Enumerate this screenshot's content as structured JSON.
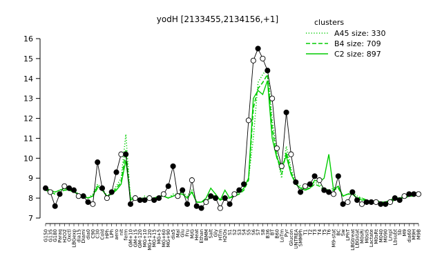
{
  "chart_data": {
    "type": "line",
    "title": "yodH [2133455,2134156,+1]",
    "xlabel": "",
    "ylabel": "",
    "ylim": [
      7,
      16
    ],
    "yticks": [
      7,
      8,
      9,
      10,
      11,
      12,
      13,
      14,
      15,
      16
    ],
    "grid": false,
    "legend": {
      "title": "clusters",
      "placement": "top-right",
      "entries": [
        {
          "label": "A45 size: 330",
          "style": "dotted"
        },
        {
          "label": "B4 size: 709",
          "style": "dashed"
        },
        {
          "label": "C2 size: 897",
          "style": "solid"
        }
      ]
    },
    "color": "#00cc00",
    "x_labels": [
      "G150",
      "G135",
      "G180",
      "Paraq",
      "H2O2",
      "Oxctl",
      "LBGexp",
      "dia15",
      "Diami",
      "dia0",
      "C90",
      "C30",
      "Cold",
      "HPh",
      "LPh",
      "aero",
      "nit",
      "ferm",
      "GM+10",
      "GM+15",
      "GM-120",
      "MG+10",
      "MG+120",
      "MG+15",
      "MG+5",
      "MG+60",
      "MG+90",
      "dia5",
      "Mal",
      "Glu",
      "Fru",
      "M/G",
      "Heat",
      "Ethan",
      "BMM",
      "Salt",
      "Gly",
      "HTm",
      "H2Os",
      "S1",
      "S2",
      "S3",
      "S4",
      "S5",
      "S6",
      "S7",
      "S8",
      "B36",
      "BT",
      "B60",
      "LoTm",
      "Pyr",
      "Glucon",
      "UNTREA",
      "SMMPh",
      "T1",
      "T2",
      "T3",
      "T4",
      "T5",
      "T6",
      "M9-stat",
      "BC",
      "Sw",
      "LPhT",
      "LBGtreat",
      "LBGstat",
      "M0sRi",
      "M0sI5",
      "Lactate",
      "M0sRt",
      "M040",
      "M090",
      "Lmpl",
      "Lbsubt",
      "Sb",
      "M9",
      "dia60",
      "M9H",
      "M9B"
    ],
    "series": [
      {
        "name": "A45 size: 330",
        "style": "dotted",
        "values": [
          8.5,
          8.4,
          8.3,
          8.4,
          8.5,
          8.5,
          8.4,
          8.2,
          8.1,
          8.0,
          8.2,
          8.7,
          8.5,
          8.1,
          8.3,
          8.6,
          9.0,
          11.2,
          7.9,
          8.0,
          7.9,
          8.1,
          8.0,
          8.0,
          8.1,
          8.1,
          8.0,
          8.2,
          8.2,
          8.3,
          8.1,
          8.4,
          7.8,
          7.8,
          7.9,
          8.0,
          8.2,
          7.9,
          8.1,
          8.0,
          8.1,
          8.2,
          8.5,
          9.0,
          11.0,
          13.8,
          14.2,
          14.5,
          12.0,
          10.2,
          9.0,
          10.6,
          9.5,
          8.8,
          8.6,
          8.4,
          8.6,
          8.8,
          8.7,
          8.5,
          8.4,
          8.5,
          8.6,
          8.1,
          8.2,
          8.3,
          8.1,
          8.0,
          7.9,
          7.8,
          7.9,
          7.8,
          7.8,
          7.9,
          8.0,
          8.0,
          8.1,
          8.1,
          8.2,
          8.3
        ]
      },
      {
        "name": "B4 size: 709",
        "style": "dashed",
        "values": [
          8.4,
          8.3,
          8.2,
          8.3,
          8.4,
          8.4,
          8.3,
          8.2,
          8.1,
          8.0,
          8.1,
          8.5,
          8.4,
          8.1,
          8.2,
          8.5,
          8.8,
          10.4,
          7.9,
          8.0,
          7.9,
          8.0,
          8.0,
          8.0,
          8.1,
          8.1,
          8.0,
          8.1,
          8.2,
          8.2,
          8.0,
          8.3,
          7.8,
          7.8,
          7.9,
          8.0,
          8.1,
          7.9,
          8.0,
          8.0,
          8.1,
          8.2,
          8.4,
          8.9,
          12.5,
          13.5,
          13.8,
          14.2,
          11.5,
          10.1,
          9.2,
          10.3,
          9.3,
          8.7,
          8.5,
          8.4,
          8.5,
          8.7,
          8.6,
          8.4,
          8.3,
          8.4,
          8.5,
          8.1,
          8.2,
          8.2,
          8.0,
          8.0,
          7.9,
          7.8,
          7.9,
          7.8,
          7.8,
          7.9,
          8.0,
          8.0,
          8.0,
          8.1,
          8.1,
          8.2
        ]
      },
      {
        "name": "C2 size: 897",
        "style": "solid",
        "values": [
          8.5,
          8.4,
          8.3,
          8.4,
          8.5,
          8.4,
          8.3,
          8.2,
          8.1,
          8.0,
          8.1,
          8.6,
          8.4,
          8.1,
          8.2,
          8.4,
          8.7,
          9.9,
          8.0,
          8.0,
          7.9,
          8.0,
          8.0,
          8.0,
          8.1,
          8.1,
          8.0,
          8.1,
          8.2,
          8.2,
          8.0,
          8.3,
          7.8,
          7.8,
          8.0,
          8.5,
          8.2,
          7.9,
          8.4,
          8.0,
          8.2,
          8.3,
          8.5,
          9.0,
          13.0,
          13.4,
          13.2,
          13.9,
          11.0,
          10.0,
          9.6,
          10.1,
          9.2,
          8.7,
          8.5,
          8.4,
          8.5,
          8.9,
          8.8,
          9.0,
          10.2,
          8.4,
          8.6,
          8.1,
          8.2,
          8.2,
          8.0,
          7.9,
          7.9,
          7.8,
          7.8,
          7.8,
          7.8,
          7.8,
          7.9,
          8.0,
          8.0,
          8.1,
          8.1,
          8.2
        ]
      },
      {
        "name": "",
        "style": "points",
        "values": [
          8.5,
          8.3,
          7.6,
          8.2,
          8.6,
          8.5,
          8.4,
          8.1,
          8.1,
          7.8,
          7.7,
          9.8,
          8.5,
          8.0,
          8.3,
          9.3,
          10.2,
          10.2,
          7.7,
          8.0,
          7.9,
          7.9,
          8.0,
          7.9,
          8.0,
          8.2,
          8.6,
          9.6,
          8.1,
          8.4,
          7.7,
          8.9,
          7.6,
          7.5,
          7.8,
          8.1,
          8.0,
          7.5,
          8.0,
          7.7,
          8.2,
          8.4,
          8.7,
          11.9,
          14.9,
          15.5,
          15.0,
          14.4,
          13.0,
          10.5,
          9.6,
          12.3,
          10.2,
          8.8,
          8.3,
          8.6,
          8.7,
          9.1,
          8.9,
          8.4,
          8.3,
          8.2,
          9.1,
          7.7,
          7.8,
          8.3,
          7.9,
          7.7,
          7.8,
          7.8,
          7.8,
          7.7,
          7.7,
          7.8,
          8.0,
          7.9,
          8.1,
          8.2,
          8.2,
          8.2
        ]
      }
    ]
  }
}
